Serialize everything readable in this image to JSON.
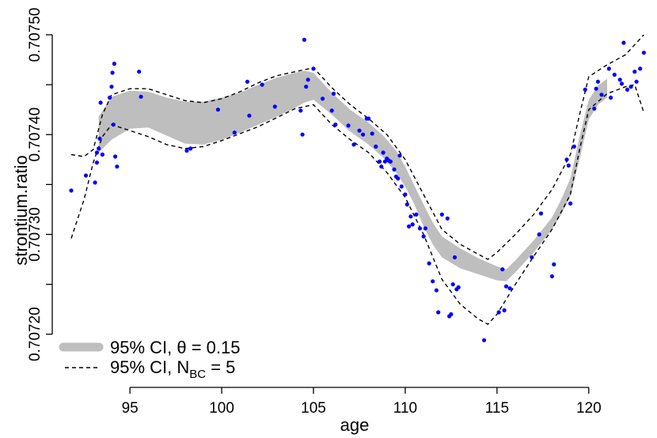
{
  "chart_data": {
    "type": "line",
    "xlabel": "age",
    "ylabel": "strontium.ratio",
    "xlim": [
      91.5,
      123.2
    ],
    "ylim": [
      0.70718,
      0.7075
    ],
    "x_ticks": [
      95,
      100,
      105,
      110,
      115,
      120
    ],
    "y_ticks": [
      0.7072,
      0.70725,
      0.7073,
      0.70735,
      0.7074,
      0.70745,
      0.7075
    ],
    "y_tick_labels": [
      "0.70720",
      "",
      "0.70730",
      "",
      "0.70740",
      "",
      "0.70750"
    ],
    "grid": false,
    "legend_position": "bottom-left",
    "series": [
      {
        "name": "95% CI, θ = 0.15",
        "kind": "band",
        "color": "#bebebe",
        "x": [
          93.3,
          94.0,
          95.0,
          96.0,
          97.0,
          98.0,
          99.0,
          100.0,
          101.0,
          102.0,
          103.0,
          104.0,
          104.5,
          105.0,
          106.0,
          107.0,
          108.0,
          108.8,
          109.5,
          110.0,
          110.5,
          111.0,
          111.5,
          112.0,
          113.0,
          114.0,
          115.0,
          115.5,
          116.0,
          117.0,
          118.0,
          118.5,
          119.0,
          119.5,
          120.0,
          120.5,
          121.0
        ],
        "lower": [
          0.707382,
          0.707395,
          0.707406,
          0.707407,
          0.707399,
          0.707391,
          0.70739,
          0.707395,
          0.707402,
          0.70741,
          0.707418,
          0.707427,
          0.707432,
          0.707435,
          0.70742,
          0.707403,
          0.70739,
          0.707377,
          0.707362,
          0.707348,
          0.70733,
          0.707308,
          0.70729,
          0.707277,
          0.707266,
          0.70726,
          0.707254,
          0.707253,
          0.707262,
          0.707282,
          0.707305,
          0.70732,
          0.707338,
          0.707375,
          0.707415,
          0.70743,
          0.707437
        ],
        "upper": [
          0.707418,
          0.707438,
          0.707444,
          0.707443,
          0.707437,
          0.707433,
          0.707433,
          0.707437,
          0.707442,
          0.70745,
          0.707457,
          0.707462,
          0.707464,
          0.707462,
          0.707442,
          0.707425,
          0.707412,
          0.707399,
          0.707384,
          0.707368,
          0.707349,
          0.70733,
          0.707312,
          0.707298,
          0.707286,
          0.707276,
          0.707268,
          0.707265,
          0.707274,
          0.707294,
          0.707317,
          0.707335,
          0.707356,
          0.707398,
          0.707435,
          0.707449,
          0.707456
        ]
      },
      {
        "name": "95% CI, N_BC = 5",
        "kind": "dashed-band",
        "color": "#000000",
        "x": [
          91.8,
          92.5,
          93.0,
          93.5,
          94.0,
          95.0,
          96.0,
          97.0,
          98.0,
          99.0,
          100.0,
          101.0,
          102.0,
          103.0,
          104.0,
          105.0,
          106.0,
          107.0,
          108.0,
          109.0,
          110.0,
          111.0,
          112.0,
          113.0,
          114.0,
          114.5,
          115.0,
          116.0,
          117.0,
          118.0,
          119.0,
          119.5,
          120.0,
          121.0,
          122.0,
          122.5,
          123.0
        ],
        "lower": [
          0.707296,
          0.707335,
          0.707372,
          0.707398,
          0.70741,
          0.707404,
          0.707398,
          0.70739,
          0.707386,
          0.707388,
          0.707394,
          0.707401,
          0.707408,
          0.707417,
          0.707426,
          0.70743,
          0.70741,
          0.707395,
          0.707382,
          0.707362,
          0.707337,
          0.7073,
          0.707255,
          0.70723,
          0.707215,
          0.70721,
          0.70722,
          0.70725,
          0.707278,
          0.707305,
          0.70734,
          0.707385,
          0.707425,
          0.707441,
          0.707448,
          0.70745,
          0.707422
        ],
        "upper": [
          0.70738,
          0.707378,
          0.707385,
          0.70742,
          0.70744,
          0.707446,
          0.707446,
          0.70744,
          0.707434,
          0.707432,
          0.707436,
          0.707443,
          0.707452,
          0.707459,
          0.707463,
          0.707467,
          0.707447,
          0.70743,
          0.707416,
          0.7074,
          0.707375,
          0.70734,
          0.707305,
          0.70729,
          0.70728,
          0.707275,
          0.707282,
          0.7073,
          0.70732,
          0.707345,
          0.70738,
          0.70742,
          0.707458,
          0.70747,
          0.70748,
          0.70749,
          0.7075
        ]
      },
      {
        "name": "",
        "kind": "points",
        "color": "#0000ff",
        "x": [
          91.8,
          92.6,
          93.1,
          93.2,
          93.2,
          93.3,
          93.35,
          93.4,
          93.5,
          93.9,
          94.0,
          94.05,
          94.1,
          94.15,
          94.2,
          94.3,
          95.5,
          95.6,
          98.1,
          98.3,
          99.8,
          100.7,
          101.4,
          101.5,
          102.2,
          102.9,
          104.3,
          104.4,
          104.5,
          104.6,
          104.7,
          105.0,
          105.5,
          106.0,
          106.1,
          106.2,
          106.9,
          107.2,
          107.5,
          107.7,
          107.9,
          108.0,
          108.2,
          108.4,
          108.6,
          108.7,
          108.8,
          108.9,
          109.0,
          109.1,
          109.2,
          109.4,
          109.5,
          109.6,
          109.7,
          109.8,
          110.0,
          110.1,
          110.2,
          110.3,
          110.4,
          110.6,
          110.8,
          111.0,
          111.1,
          111.3,
          111.5,
          111.7,
          111.8,
          112.0,
          112.3,
          112.4,
          112.5,
          112.6,
          112.7,
          112.8,
          112.9,
          114.3,
          115.1,
          115.3,
          115.4,
          115.5,
          115.7,
          116.9,
          117.3,
          117.4,
          118.0,
          118.1,
          118.8,
          118.9,
          119.0,
          119.2,
          119.8,
          120.3,
          120.4,
          120.5,
          120.7,
          121.1,
          121.2,
          121.4,
          121.7,
          121.8,
          121.9,
          122.1,
          122.3,
          122.5,
          122.6,
          122.8,
          123.0
        ],
        "y": [
          0.707344,
          0.707359,
          0.707352,
          0.707372,
          0.707382,
          0.707386,
          0.707396,
          0.707432,
          0.70738,
          0.707437,
          0.707448,
          0.707462,
          0.70741,
          0.707471,
          0.707378,
          0.707368,
          0.707463,
          0.707438,
          0.707384,
          0.707386,
          0.707425,
          0.707402,
          0.707453,
          0.707419,
          0.70745,
          0.707428,
          0.707424,
          0.7074,
          0.707495,
          0.707448,
          0.707455,
          0.707466,
          0.707436,
          0.707424,
          0.707441,
          0.70741,
          0.707409,
          0.70739,
          0.707404,
          0.7074,
          0.707416,
          0.707416,
          0.707401,
          0.707388,
          0.707373,
          0.707368,
          0.707382,
          0.707373,
          0.707376,
          0.707374,
          0.707373,
          0.707365,
          0.707358,
          0.707356,
          0.707379,
          0.707348,
          0.70734,
          0.70733,
          0.707308,
          0.707318,
          0.70731,
          0.70732,
          0.707306,
          0.707298,
          0.707306,
          0.707271,
          0.707253,
          0.707244,
          0.707222,
          0.70732,
          0.707316,
          0.707218,
          0.70722,
          0.70725,
          0.707277,
          0.707245,
          0.707247,
          0.707194,
          0.707222,
          0.707265,
          0.707224,
          0.707248,
          0.707246,
          0.707277,
          0.7073,
          0.707321,
          0.707258,
          0.70727,
          0.707375,
          0.707369,
          0.707331,
          0.707388,
          0.707445,
          0.707426,
          0.707446,
          0.707453,
          0.70744,
          0.707466,
          0.707437,
          0.70746,
          0.707455,
          0.707451,
          0.707492,
          0.707445,
          0.707448,
          0.707463,
          0.707453,
          0.707466,
          0.707482
        ]
      }
    ],
    "legend": [
      {
        "text": "95% CI, θ = 0.15",
        "style": "gray-band"
      },
      {
        "main": "95% CI, N",
        "sub": "BC",
        "rest": " = 5",
        "style": "dashed-line"
      }
    ]
  }
}
